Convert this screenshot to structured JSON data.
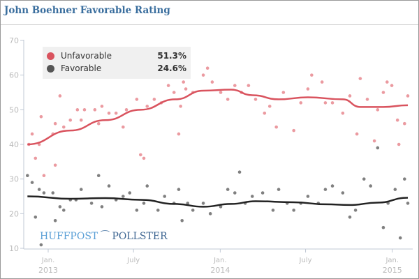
{
  "title": "John Boehner Favorable Rating",
  "logo": {
    "left": "HUFFPOST",
    "right": "POLLSTER"
  },
  "chart_data": {
    "type": "scatter",
    "title": "John Boehner Favorable Rating",
    "ylim": [
      10,
      70
    ],
    "yticks": [
      "10",
      "20",
      "30",
      "40",
      "50",
      "60",
      "70"
    ],
    "xticks": [
      {
        "date": "2013-01-01",
        "line1": "Jan.",
        "line2": "2013"
      },
      {
        "date": "2013-07-01",
        "line1": "July",
        "line2": ""
      },
      {
        "date": "2014-01-01",
        "line1": "Jan.",
        "line2": "2014"
      },
      {
        "date": "2014-07-01",
        "line1": "July",
        "line2": ""
      },
      {
        "date": "2015-01-01",
        "line1": "Jan.",
        "line2": "2015"
      }
    ],
    "xlim": [
      "2012-11-12",
      "2015-02-10"
    ],
    "legend_placement": "top-left",
    "series": [
      {
        "name": "Unfavorable",
        "latest": "51.3%",
        "color": "#d9535e",
        "point_color": "#eb9aa0",
        "trend": [
          [
            "2012-11-18",
            40
          ],
          [
            "2013-02-17",
            44
          ],
          [
            "2013-05-02",
            47
          ],
          [
            "2013-07-16",
            50
          ],
          [
            "2013-09-28",
            53
          ],
          [
            "2013-11-26",
            55.5
          ],
          [
            "2014-01-24",
            55.8
          ],
          [
            "2014-03-10",
            54.2
          ],
          [
            "2014-05-05",
            53
          ],
          [
            "2014-07-06",
            53.6
          ],
          [
            "2014-09-18",
            53
          ],
          [
            "2014-10-25",
            50.8
          ],
          [
            "2014-12-13",
            50.8
          ],
          [
            "2015-02-03",
            51.3
          ]
        ],
        "points": [
          [
            "2012-11-21",
            40
          ],
          [
            "2012-11-28",
            43
          ],
          [
            "2012-12-05",
            36
          ],
          [
            "2012-12-13",
            40
          ],
          [
            "2012-12-17",
            48
          ],
          [
            "2012-12-23",
            31
          ],
          [
            "2013-01-11",
            43
          ],
          [
            "2013-01-16",
            46
          ],
          [
            "2013-01-16",
            34
          ],
          [
            "2013-01-26",
            54
          ],
          [
            "2013-02-03",
            45
          ],
          [
            "2013-02-17",
            47
          ],
          [
            "2013-03-04",
            50
          ],
          [
            "2013-03-12",
            47
          ],
          [
            "2013-03-19",
            50
          ],
          [
            "2013-04-10",
            50
          ],
          [
            "2013-04-18",
            46
          ],
          [
            "2013-04-25",
            51
          ],
          [
            "2013-05-10",
            49
          ],
          [
            "2013-05-25",
            49
          ],
          [
            "2013-06-09",
            45
          ],
          [
            "2013-06-16",
            50
          ],
          [
            "2013-07-08",
            53
          ],
          [
            "2013-07-16",
            37
          ],
          [
            "2013-07-23",
            36
          ],
          [
            "2013-07-30",
            51
          ],
          [
            "2013-08-14",
            53
          ],
          [
            "2013-08-29",
            52
          ],
          [
            "2013-09-13",
            57
          ],
          [
            "2013-09-25",
            55
          ],
          [
            "2013-10-05",
            43
          ],
          [
            "2013-10-09",
            51
          ],
          [
            "2013-10-15",
            58
          ],
          [
            "2013-10-20",
            56
          ],
          [
            "2013-11-04",
            55
          ],
          [
            "2013-11-26",
            60
          ],
          [
            "2013-12-05",
            62
          ],
          [
            "2013-12-15",
            58
          ],
          [
            "2014-01-02",
            55
          ],
          [
            "2014-01-17",
            53
          ],
          [
            "2014-02-01",
            57
          ],
          [
            "2014-02-15",
            55
          ],
          [
            "2014-03-02",
            57
          ],
          [
            "2014-03-17",
            53
          ],
          [
            "2014-04-05",
            49
          ],
          [
            "2014-04-16",
            51
          ],
          [
            "2014-04-30",
            45
          ],
          [
            "2014-05-15",
            55
          ],
          [
            "2014-06-06",
            44
          ],
          [
            "2014-06-21",
            52
          ],
          [
            "2014-07-06",
            56
          ],
          [
            "2014-07-14",
            60
          ],
          [
            "2014-08-05",
            58
          ],
          [
            "2014-08-12",
            52
          ],
          [
            "2014-08-27",
            52
          ],
          [
            "2014-09-18",
            49
          ],
          [
            "2014-10-03",
            54
          ],
          [
            "2014-10-18",
            43
          ],
          [
            "2014-10-25",
            59
          ],
          [
            "2014-11-09",
            53
          ],
          [
            "2014-11-24",
            41
          ],
          [
            "2014-12-01",
            50
          ],
          [
            "2014-12-13",
            55
          ],
          [
            "2014-12-21",
            58
          ],
          [
            "2014-12-31",
            57
          ],
          [
            "2015-01-12",
            47
          ],
          [
            "2015-01-15",
            40
          ],
          [
            "2015-01-27",
            46
          ],
          [
            "2015-02-03",
            54
          ]
        ]
      },
      {
        "name": "Favorable",
        "latest": "24.6%",
        "color": "#222222",
        "point_color": "#808080",
        "trend": [
          [
            "2012-11-18",
            25
          ],
          [
            "2013-02-17",
            24.3
          ],
          [
            "2013-05-02",
            24.5
          ],
          [
            "2013-07-16",
            24
          ],
          [
            "2013-09-28",
            22.8
          ],
          [
            "2013-11-26",
            22
          ],
          [
            "2014-01-24",
            22.8
          ],
          [
            "2014-03-17",
            23.6
          ],
          [
            "2014-06-06",
            23.3
          ],
          [
            "2014-08-12",
            22.7
          ],
          [
            "2014-10-03",
            22.5
          ],
          [
            "2014-12-01",
            23.2
          ],
          [
            "2015-02-03",
            24.6
          ]
        ],
        "points": [
          [
            "2012-11-18",
            31
          ],
          [
            "2012-11-28",
            29
          ],
          [
            "2012-12-05",
            19
          ],
          [
            "2012-12-13",
            27
          ],
          [
            "2012-12-17",
            11
          ],
          [
            "2012-12-23",
            26
          ],
          [
            "2013-01-11",
            26
          ],
          [
            "2013-01-16",
            18
          ],
          [
            "2013-01-26",
            22
          ],
          [
            "2013-02-03",
            21
          ],
          [
            "2013-02-17",
            24
          ],
          [
            "2013-03-01",
            24
          ],
          [
            "2013-03-12",
            27
          ],
          [
            "2013-04-03",
            23
          ],
          [
            "2013-04-18",
            31
          ],
          [
            "2013-04-25",
            22
          ],
          [
            "2013-05-10",
            28
          ],
          [
            "2013-05-25",
            24
          ],
          [
            "2013-06-09",
            25
          ],
          [
            "2013-06-23",
            26
          ],
          [
            "2013-07-08",
            21
          ],
          [
            "2013-07-23",
            23
          ],
          [
            "2013-07-30",
            28
          ],
          [
            "2013-08-22",
            21
          ],
          [
            "2013-09-05",
            25
          ],
          [
            "2013-09-25",
            23
          ],
          [
            "2013-10-05",
            27
          ],
          [
            "2013-10-12",
            18
          ],
          [
            "2013-10-24",
            23
          ],
          [
            "2013-11-04",
            21
          ],
          [
            "2013-11-26",
            23
          ],
          [
            "2013-12-11",
            20
          ],
          [
            "2014-01-02",
            22
          ],
          [
            "2014-01-17",
            27
          ],
          [
            "2014-02-01",
            26
          ],
          [
            "2014-02-11",
            32
          ],
          [
            "2014-02-23",
            23
          ],
          [
            "2014-03-10",
            25
          ],
          [
            "2014-04-01",
            26
          ],
          [
            "2014-04-23",
            21
          ],
          [
            "2014-05-05",
            27
          ],
          [
            "2014-05-23",
            23
          ],
          [
            "2014-06-06",
            21
          ],
          [
            "2014-06-21",
            23
          ],
          [
            "2014-07-06",
            25
          ],
          [
            "2014-07-28",
            23
          ],
          [
            "2014-08-12",
            27
          ],
          [
            "2014-08-27",
            28
          ],
          [
            "2014-09-18",
            26
          ],
          [
            "2014-10-03",
            19
          ],
          [
            "2014-10-15",
            21
          ],
          [
            "2014-11-02",
            30
          ],
          [
            "2014-11-16",
            28
          ],
          [
            "2014-12-01",
            39
          ],
          [
            "2014-12-13",
            16
          ],
          [
            "2014-12-23",
            23
          ],
          [
            "2015-01-07",
            27
          ],
          [
            "2015-01-18",
            13
          ],
          [
            "2015-01-27",
            30
          ],
          [
            "2015-02-03",
            23
          ]
        ]
      }
    ]
  }
}
